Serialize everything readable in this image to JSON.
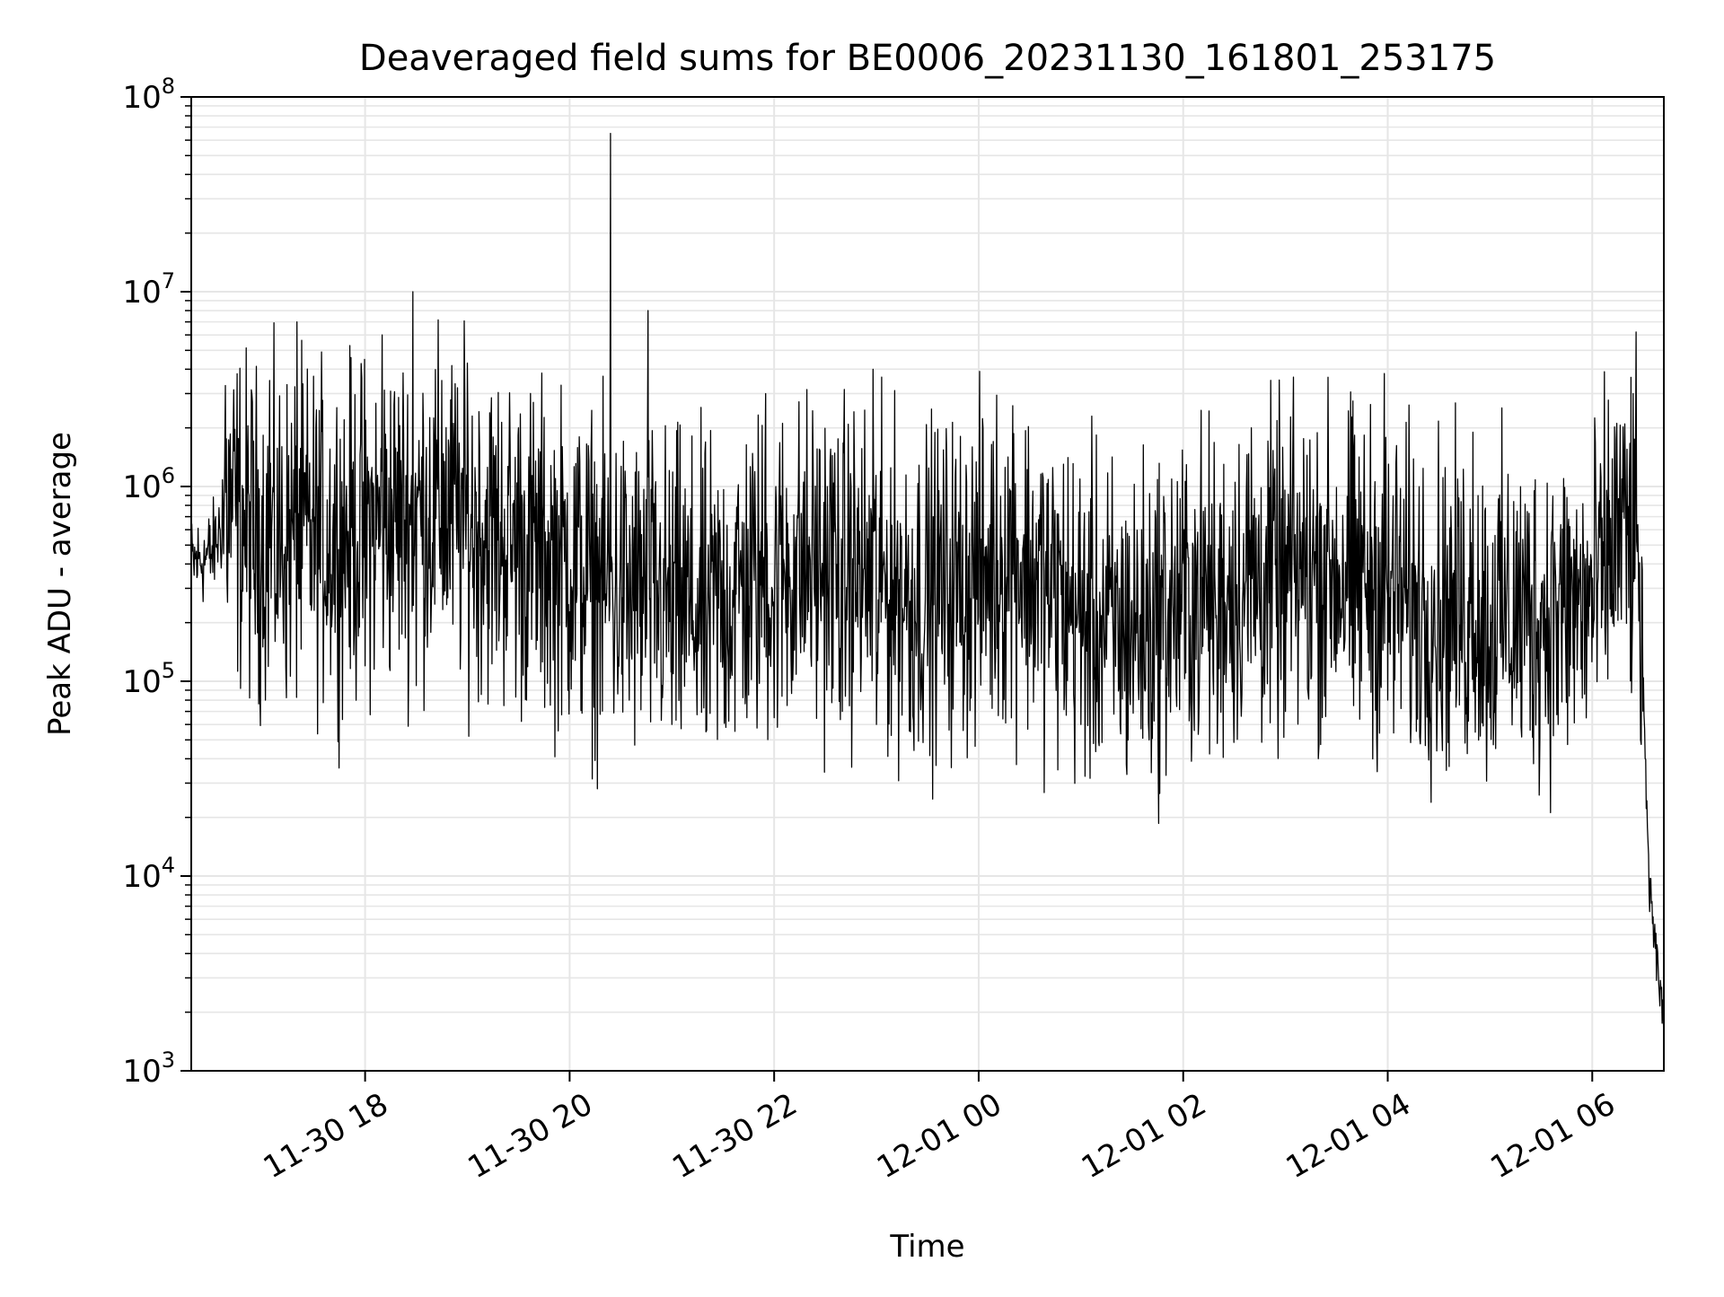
{
  "chart_data": {
    "type": "line",
    "title": "Deaveraged field sums for BE0006_20231130_161801_253175",
    "xlabel": "Time",
    "ylabel": "Peak ADU - average",
    "yscale": "log",
    "ylim": [
      1000,
      100000000
    ],
    "y_ticks": [
      {
        "value": 1000,
        "base": "10",
        "exp": "3"
      },
      {
        "value": 10000,
        "base": "10",
        "exp": "4"
      },
      {
        "value": 100000,
        "base": "10",
        "exp": "5"
      },
      {
        "value": 1000000,
        "base": "10",
        "exp": "6"
      },
      {
        "value": 10000000,
        "base": "10",
        "exp": "7"
      },
      {
        "value": 100000000,
        "base": "10",
        "exp": "8"
      }
    ],
    "xlim": [
      "2023-11-30 16:18",
      "2023-12-01 06:42"
    ],
    "x_ticks": [
      {
        "time": "2023-11-30 18:00",
        "label": "11-30 18"
      },
      {
        "time": "2023-11-30 20:00",
        "label": "11-30 20"
      },
      {
        "time": "2023-11-30 22:00",
        "label": "11-30 22"
      },
      {
        "time": "2023-12-01 00:00",
        "label": "12-01 00"
      },
      {
        "time": "2023-12-01 02:00",
        "label": "12-01 02"
      },
      {
        "time": "2023-12-01 04:00",
        "label": "12-01 04"
      },
      {
        "time": "2023-12-01 06:00",
        "label": "12-01 06"
      }
    ],
    "grid": true,
    "legend": "none",
    "line_color": "#000000",
    "grid_color": "#e6e6e6",
    "series": [
      {
        "points": [
          [
            "2023-11-30 16:18",
            400000
          ],
          [
            "2023-11-30 16:30",
            450000
          ],
          [
            "2023-11-30 16:40",
            800000
          ],
          [
            "2023-11-30 17:00",
            500000
          ],
          [
            "2023-11-30 17:20",
            550000
          ],
          [
            "2023-11-30 17:40",
            550000
          ],
          [
            "2023-11-30 18:00",
            600000
          ],
          [
            "2023-11-30 18:20",
            700000
          ],
          [
            "2023-11-30 18:40",
            750000
          ],
          [
            "2023-11-30 19:00",
            650000
          ],
          [
            "2023-11-30 19:20",
            550000
          ],
          [
            "2023-11-30 19:40",
            450000
          ],
          [
            "2023-11-30 20:00",
            400000
          ],
          [
            "2023-11-30 20:20",
            300000
          ],
          [
            "2023-11-30 20:40",
            280000
          ],
          [
            "2023-11-30 21:00",
            250000
          ],
          [
            "2023-11-30 21:20",
            220000
          ],
          [
            "2023-11-30 21:40",
            300000
          ],
          [
            "2023-11-30 22:00",
            350000
          ],
          [
            "2023-11-30 22:20",
            400000
          ],
          [
            "2023-11-30 22:40",
            380000
          ],
          [
            "2023-11-30 23:00",
            320000
          ],
          [
            "2023-11-30 23:20",
            280000
          ],
          [
            "2023-11-30 23:40",
            300000
          ],
          [
            "2023-12-01 00:00",
            350000
          ],
          [
            "2023-12-01 00:20",
            450000
          ],
          [
            "2023-12-01 00:40",
            300000
          ],
          [
            "2023-12-01 01:00",
            220000
          ],
          [
            "2023-12-01 01:20",
            180000
          ],
          [
            "2023-12-01 01:40",
            200000
          ],
          [
            "2023-12-01 02:00",
            250000
          ],
          [
            "2023-12-01 02:20",
            300000
          ],
          [
            "2023-12-01 02:40",
            320000
          ],
          [
            "2023-12-01 03:00",
            350000
          ],
          [
            "2023-12-01 03:20",
            380000
          ],
          [
            "2023-12-01 03:40",
            350000
          ],
          [
            "2023-12-01 04:00",
            300000
          ],
          [
            "2023-12-01 04:20",
            250000
          ],
          [
            "2023-12-01 04:40",
            230000
          ],
          [
            "2023-12-01 05:00",
            220000
          ],
          [
            "2023-12-01 05:20",
            220000
          ],
          [
            "2023-12-01 05:40",
            230000
          ],
          [
            "2023-12-01 06:00",
            250000
          ],
          [
            "2023-12-01 06:15",
            600000
          ],
          [
            "2023-12-01 06:26",
            500000
          ],
          [
            "2023-12-01 06:30",
            100000
          ],
          [
            "2023-12-01 06:33",
            10000
          ],
          [
            "2023-12-01 06:36",
            5000
          ],
          [
            "2023-12-01 06:39",
            3000
          ],
          [
            "2023-12-01 06:42",
            1500
          ]
        ],
        "spikes": [
          [
            "2023-11-30 16:38",
            3300000
          ],
          [
            "2023-11-30 17:04",
            3500000
          ],
          [
            "2023-11-30 17:20",
            7000000
          ],
          [
            "2023-11-30 18:10",
            6000000
          ],
          [
            "2023-11-30 18:28",
            10000000
          ],
          [
            "2023-11-30 18:45",
            3500000
          ],
          [
            "2023-11-30 19:00",
            4300000
          ],
          [
            "2023-11-30 19:30",
            2000000
          ],
          [
            "2023-11-30 20:24",
            65000000
          ],
          [
            "2023-11-30 20:46",
            8000000
          ],
          [
            "2023-11-30 21:20",
            2600000
          ],
          [
            "2023-11-30 21:55",
            3000000
          ],
          [
            "2023-11-30 22:58",
            4000000
          ],
          [
            "2023-12-01 00:20",
            2600000
          ],
          [
            "2023-12-01 02:40",
            2000000
          ],
          [
            "2023-12-01 03:40",
            1900000
          ],
          [
            "2023-12-01 03:58",
            3800000
          ],
          [
            "2023-12-01 04:50",
            1900000
          ],
          [
            "2023-12-01 06:24",
            3000000
          ]
        ],
        "dips": [
          [
            "2023-11-30 17:00",
            150000
          ],
          [
            "2023-11-30 18:00",
            120000
          ],
          [
            "2023-11-30 18:30",
            95000
          ],
          [
            "2023-11-30 20:35",
            80000
          ],
          [
            "2023-11-30 21:00",
            60000
          ],
          [
            "2023-11-30 21:20",
            55000
          ],
          [
            "2023-11-30 22:00",
            65000
          ],
          [
            "2023-11-30 22:40",
            70000
          ],
          [
            "2023-11-30 23:00",
            60000
          ],
          [
            "2023-11-30 23:20",
            55000
          ],
          [
            "2023-12-01 01:00",
            60000
          ],
          [
            "2023-12-01 01:40",
            50000
          ],
          [
            "2023-12-01 02:20",
            48000
          ],
          [
            "2023-12-01 03:00",
            70000
          ],
          [
            "2023-12-01 03:40",
            75000
          ],
          [
            "2023-12-01 04:00",
            80000
          ],
          [
            "2023-12-01 05:00",
            65000
          ],
          [
            "2023-12-01 05:40",
            60000
          ]
        ]
      }
    ]
  }
}
